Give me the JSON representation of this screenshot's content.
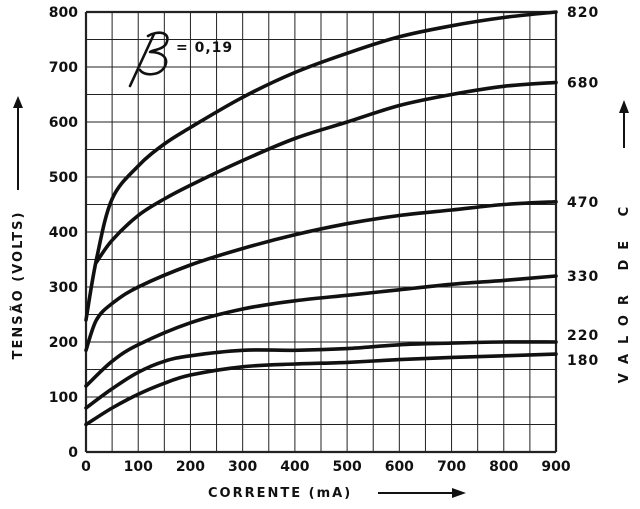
{
  "chart_data": {
    "type": "line",
    "annotation": "= 0,19",
    "xlabel": "CORRENTE (mA)",
    "ylabel": "TENSÃO (VOLTS)",
    "right_label": "VALOR DE C",
    "xlim": [
      0,
      900
    ],
    "ylim": [
      0,
      800
    ],
    "x_ticks": [
      0,
      100,
      200,
      300,
      400,
      500,
      600,
      700,
      800,
      900
    ],
    "y_ticks": [
      0,
      100,
      200,
      300,
      400,
      500,
      600,
      700,
      800
    ],
    "grid": true,
    "series": [
      {
        "name": "820",
        "x": [
          0,
          20,
          50,
          100,
          150,
          200,
          300,
          400,
          500,
          600,
          700,
          800,
          900
        ],
        "y": [
          240,
          350,
          460,
          520,
          560,
          590,
          645,
          690,
          725,
          755,
          775,
          790,
          800
        ]
      },
      {
        "name": "680",
        "x": [
          20,
          50,
          100,
          150,
          200,
          300,
          400,
          500,
          600,
          700,
          800,
          900
        ],
        "y": [
          345,
          385,
          430,
          460,
          485,
          530,
          570,
          600,
          630,
          650,
          665,
          672
        ]
      },
      {
        "name": "470",
        "x": [
          0,
          20,
          50,
          100,
          200,
          300,
          400,
          500,
          600,
          700,
          800,
          900
        ],
        "y": [
          185,
          240,
          270,
          300,
          340,
          370,
          395,
          415,
          430,
          440,
          450,
          455
        ]
      },
      {
        "name": "330",
        "x": [
          0,
          50,
          100,
          200,
          300,
          400,
          500,
          600,
          700,
          800,
          900
        ],
        "y": [
          120,
          165,
          195,
          235,
          260,
          275,
          285,
          295,
          305,
          312,
          320
        ]
      },
      {
        "name": "220",
        "x": [
          0,
          50,
          100,
          150,
          200,
          300,
          400,
          500,
          600,
          700,
          800,
          900
        ],
        "y": [
          80,
          115,
          145,
          165,
          175,
          185,
          185,
          188,
          195,
          198,
          200,
          200
        ]
      },
      {
        "name": "180",
        "x": [
          0,
          50,
          100,
          150,
          200,
          300,
          400,
          500,
          600,
          700,
          800,
          900
        ],
        "y": [
          50,
          80,
          105,
          125,
          140,
          155,
          160,
          163,
          168,
          172,
          175,
          178
        ]
      }
    ]
  }
}
